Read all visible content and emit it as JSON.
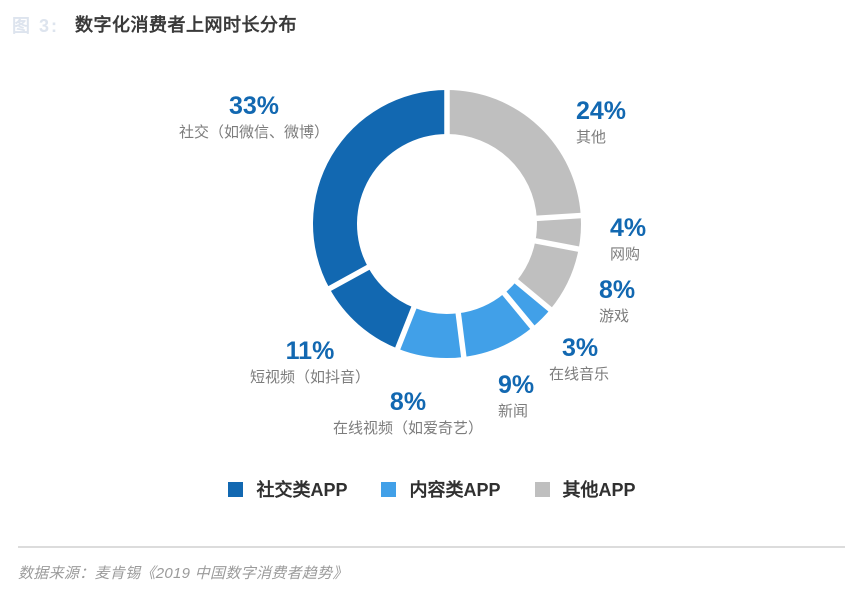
{
  "page": {
    "figure_prefix": "图 3:",
    "title": "数字化消费者上网时长分布",
    "source": "数据来源：麦肯锡《2019 中国数字消费者趋势》",
    "accent_color": "#1268b1"
  },
  "chart_data": {
    "type": "pie",
    "variant": "donut",
    "title": "数字化消费者上网时长分布",
    "unit": "%",
    "start_angle_deg": 0,
    "direction": "clockwise",
    "colors": {
      "社交类APP": "#1268b1",
      "内容类APP": "#41a0e8",
      "其他APP": "#bfbfbf"
    },
    "segments": [
      {
        "label": "其他",
        "value": 24,
        "pct": "24%",
        "group": "其他APP"
      },
      {
        "label": "网购",
        "value": 4,
        "pct": "4%",
        "group": "其他APP"
      },
      {
        "label": "游戏",
        "value": 8,
        "pct": "8%",
        "group": "其他APP"
      },
      {
        "label": "在线音乐",
        "value": 3,
        "pct": "3%",
        "group": "内容类APP"
      },
      {
        "label": "新闻",
        "value": 9,
        "pct": "9%",
        "group": "内容类APP"
      },
      {
        "label": "在线视频（如爱奇艺）",
        "value": 8,
        "pct": "8%",
        "group": "内容类APP"
      },
      {
        "label": "短视频（如抖音）",
        "value": 11,
        "pct": "11%",
        "group": "社交类APP"
      },
      {
        "label": "社交（如微信、微博）",
        "value": 33,
        "pct": "33%",
        "group": "社交类APP"
      }
    ],
    "legend": [
      {
        "label": "社交类APP",
        "color": "#1268b1"
      },
      {
        "label": "内容类APP",
        "color": "#41a0e8"
      },
      {
        "label": "其他APP",
        "color": "#bfbfbf"
      }
    ],
    "legend_position": "bottom-center"
  }
}
